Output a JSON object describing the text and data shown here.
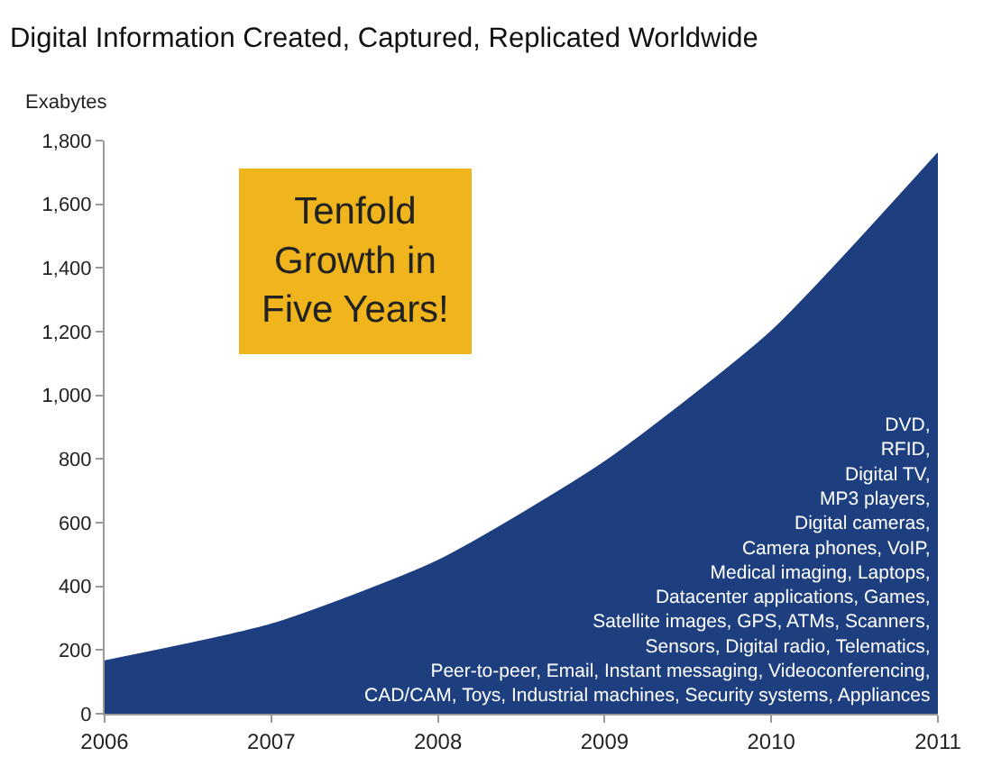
{
  "chart_data": {
    "type": "area",
    "title": "Digital Information Created, Captured, Replicated Worldwide",
    "ylabel": "Exabytes",
    "x": [
      2006,
      2007,
      2008,
      2009,
      2010,
      2011
    ],
    "series": [
      {
        "color": "#1d3f80",
        "values": [
          165,
          280,
          480,
          790,
          1200,
          1760
        ]
      }
    ],
    "xlim": [
      2006,
      2011
    ],
    "xticks": [
      2006,
      2007,
      2008,
      2009,
      2010,
      2011
    ],
    "ylim": [
      0,
      1800
    ],
    "yticks": [
      0,
      200,
      400,
      600,
      800,
      {
        "value": 1000,
        "label": "1,000"
      },
      {
        "value": 1200,
        "label": "1,200"
      },
      {
        "value": 1400,
        "label": "1,400"
      },
      {
        "value": 1600,
        "label": "1,600"
      },
      {
        "value": 1800,
        "label": "1,800"
      }
    ],
    "annotations": [
      "Tenfold\nGrowth in\nFive Years!",
      "DVD,\nRFID,\nDigital TV,\nMP3 players,\nDigital cameras,\nCamera phones, VoIP,\nMedical imaging, Laptops,\nDatacenter applications, Games,\nSatellite images, GPS, ATMs, Scanners,\nSensors, Digital radio, Telematics,\nPeer-to-peer, Email, Instant messaging, Videoconferencing,\nCAD/CAM, Toys, Industrial machines, Security systems, Appliances"
    ]
  }
}
